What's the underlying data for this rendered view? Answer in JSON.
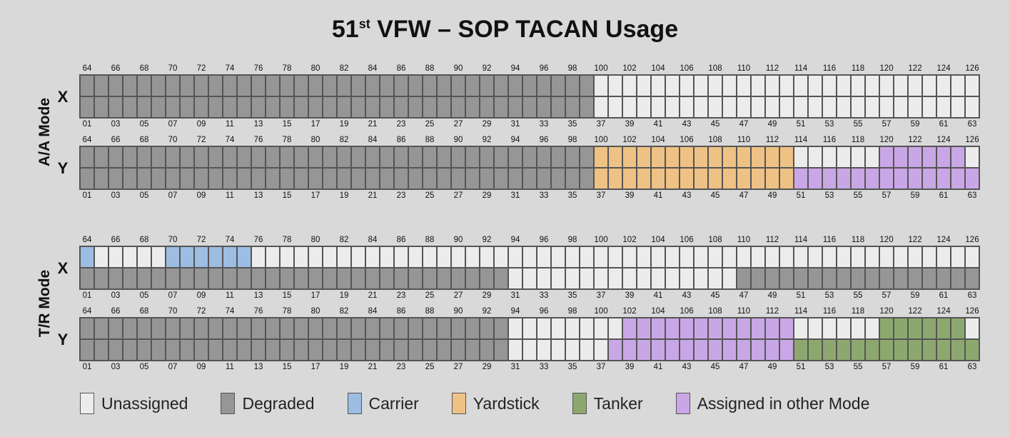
{
  "title": {
    "main": "51",
    "sup": "st",
    "rest": " VFW – SOP TACAN Usage"
  },
  "modes": [
    {
      "label": "A/A Mode",
      "rows": [
        {
          "label": "X",
          "top": [
            [
              1,
              36,
              "D"
            ],
            [
              37,
              63,
              "U"
            ]
          ],
          "bottom": [
            [
              1,
              36,
              "D"
            ],
            [
              37,
              63,
              "U"
            ]
          ]
        },
        {
          "label": "Y",
          "top": [
            [
              1,
              36,
              "D"
            ],
            [
              37,
              50,
              "Y"
            ],
            [
              51,
              56,
              "U"
            ],
            [
              57,
              62,
              "A"
            ],
            [
              63,
              63,
              "U"
            ]
          ],
          "bottom": [
            [
              1,
              36,
              "D"
            ],
            [
              37,
              50,
              "Y"
            ],
            [
              51,
              63,
              "A"
            ]
          ]
        }
      ]
    },
    {
      "label": "T/R Mode",
      "rows": [
        {
          "label": "X",
          "top": [
            [
              1,
              1,
              "C"
            ],
            [
              2,
              6,
              "U"
            ],
            [
              7,
              12,
              "C"
            ],
            [
              13,
              63,
              "U"
            ]
          ],
          "bottom": [
            [
              1,
              30,
              "D"
            ],
            [
              31,
              46,
              "U"
            ],
            [
              47,
              63,
              "D"
            ]
          ]
        },
        {
          "label": "Y",
          "top": [
            [
              1,
              30,
              "D"
            ],
            [
              31,
              38,
              "U"
            ],
            [
              39,
              50,
              "A"
            ],
            [
              51,
              56,
              "U"
            ],
            [
              57,
              62,
              "T"
            ],
            [
              63,
              63,
              "U"
            ]
          ],
          "bottom": [
            [
              1,
              30,
              "D"
            ],
            [
              31,
              37,
              "U"
            ],
            [
              38,
              50,
              "A"
            ],
            [
              51,
              63,
              "T"
            ]
          ]
        }
      ]
    }
  ],
  "top_ticks": [
    "64",
    "66",
    "68",
    "70",
    "72",
    "74",
    "76",
    "78",
    "80",
    "82",
    "84",
    "86",
    "88",
    "90",
    "92",
    "94",
    "96",
    "98",
    "100",
    "102",
    "104",
    "106",
    "108",
    "110",
    "112",
    "114",
    "116",
    "118",
    "120",
    "122",
    "124",
    "126"
  ],
  "bottom_ticks": [
    "01",
    "03",
    "05",
    "07",
    "09",
    "11",
    "13",
    "15",
    "17",
    "19",
    "21",
    "23",
    "25",
    "27",
    "29",
    "31",
    "33",
    "35",
    "37",
    "39",
    "41",
    "43",
    "45",
    "47",
    "49",
    "51",
    "53",
    "55",
    "57",
    "59",
    "61",
    "63"
  ],
  "legend": [
    {
      "key": "U",
      "label": "Unassigned",
      "color": "#ececec"
    },
    {
      "key": "D",
      "label": "Degraded",
      "color": "#969696"
    },
    {
      "key": "C",
      "label": "Carrier",
      "color": "#9dbde2"
    },
    {
      "key": "Y",
      "label": "Yardstick",
      "color": "#eec285"
    },
    {
      "key": "T",
      "label": "Tanker",
      "color": "#8da86e"
    },
    {
      "key": "A",
      "label": "Assigned in other Mode",
      "color": "#c9a7e6"
    }
  ]
}
